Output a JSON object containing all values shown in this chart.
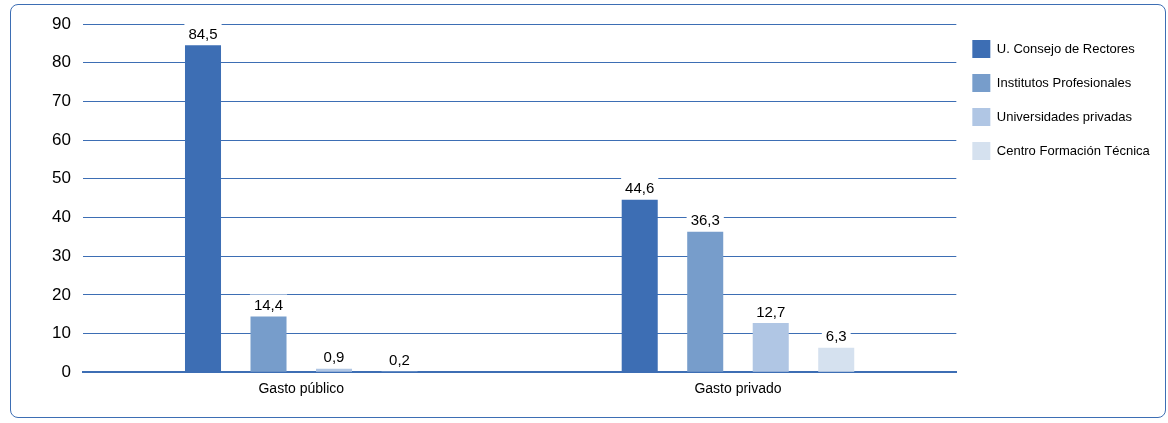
{
  "chart_data": {
    "type": "bar",
    "categories": [
      "Gasto público",
      "Gasto privado"
    ],
    "series": [
      {
        "name": "U. Consejo de Rectores",
        "color": "#3d6eb4",
        "values": [
          84.5,
          44.6
        ],
        "value_labels": [
          "84,5",
          "44,6"
        ]
      },
      {
        "name": "Institutos Profesionales",
        "color": "#779dcb",
        "values": [
          14.4,
          36.3
        ],
        "value_labels": [
          "14,4",
          "36,3"
        ]
      },
      {
        "name": "Universidades privadas",
        "color": "#b0c6e4",
        "values": [
          0.9,
          12.7
        ],
        "value_labels": [
          "0,9",
          "12,7"
        ]
      },
      {
        "name": "Centro Formación Técnica",
        "color": "#d5e1ef",
        "values": [
          0.2,
          6.3
        ],
        "value_labels": [
          "0,2",
          "6,3"
        ]
      }
    ],
    "ylim": [
      0,
      90
    ],
    "yticks": [
      0,
      10,
      20,
      30,
      40,
      50,
      60,
      70,
      80,
      90
    ],
    "grid": "y",
    "legend": "top right"
  }
}
